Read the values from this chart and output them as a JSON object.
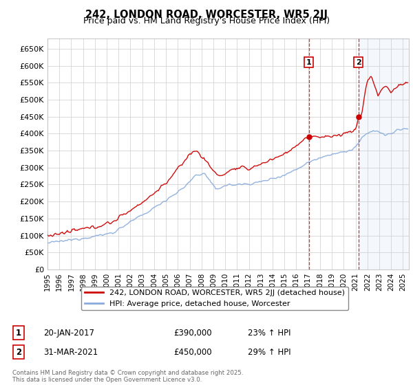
{
  "title": "242, LONDON ROAD, WORCESTER, WR5 2JJ",
  "subtitle": "Price paid vs. HM Land Registry's House Price Index (HPI)",
  "ylabel_ticks": [
    "£0",
    "£50K",
    "£100K",
    "£150K",
    "£200K",
    "£250K",
    "£300K",
    "£350K",
    "£400K",
    "£450K",
    "£500K",
    "£550K",
    "£600K",
    "£650K"
  ],
  "ytick_values": [
    0,
    50000,
    100000,
    150000,
    200000,
    250000,
    300000,
    350000,
    400000,
    450000,
    500000,
    550000,
    600000,
    650000
  ],
  "ylim": [
    0,
    680000
  ],
  "xlim_start": 1995.0,
  "xlim_end": 2025.5,
  "xticks": [
    1995,
    1996,
    1997,
    1998,
    1999,
    2000,
    2001,
    2002,
    2003,
    2004,
    2005,
    2006,
    2007,
    2008,
    2009,
    2010,
    2011,
    2012,
    2013,
    2014,
    2015,
    2016,
    2017,
    2018,
    2019,
    2020,
    2021,
    2022,
    2023,
    2024,
    2025
  ],
  "red_line_color": "#cc0000",
  "blue_line_color": "#88aadd",
  "blue_fill_color": "#aaccee",
  "vline1_x": 2017.05,
  "vline2_x": 2021.25,
  "vline_color": "#cc0000",
  "marker1_x": 2017.05,
  "marker2_x": 2021.25,
  "marker_y": 610000,
  "legend_line1": "242, LONDON ROAD, WORCESTER, WR5 2JJ (detached house)",
  "legend_line2": "HPI: Average price, detached house, Worcester",
  "annotation1_num": "1",
  "annotation1_date": "20-JAN-2017",
  "annotation1_price": "£390,000",
  "annotation1_hpi": "23% ↑ HPI",
  "annotation2_num": "2",
  "annotation2_date": "31-MAR-2021",
  "annotation2_price": "£450,000",
  "annotation2_hpi": "29% ↑ HPI",
  "footer": "Contains HM Land Registry data © Crown copyright and database right 2025.\nThis data is licensed under the Open Government Licence v3.0.",
  "background_color": "#ffffff",
  "plot_bg_color": "#ffffff",
  "grid_color": "#cccccc"
}
